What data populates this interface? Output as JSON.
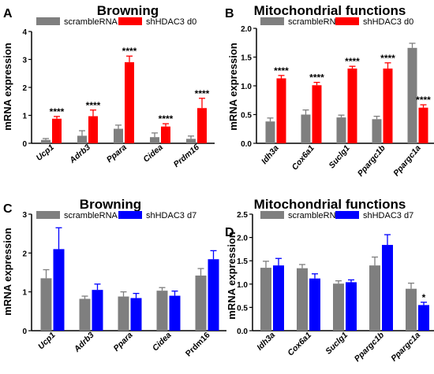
{
  "chart_data": [
    {
      "panel": "A",
      "type": "bar",
      "title": "Browning",
      "ylabel": "mRNA expression",
      "ylim": [
        0,
        4
      ],
      "yticks": [
        "0",
        "1",
        "2",
        "3",
        "4"
      ],
      "categories": [
        "Ucp1",
        "Adrb3",
        "Ppara",
        "Cidea",
        "Prdm16"
      ],
      "category_style": "bold-italic",
      "series": [
        {
          "name": "scrambleRNA",
          "color": "#7f7f7f",
          "values": [
            0.12,
            0.27,
            0.52,
            0.22,
            0.16
          ],
          "errors": [
            0.05,
            0.18,
            0.13,
            0.15,
            0.1
          ]
        },
        {
          "name": "shHDAC3 d0",
          "color": "#ff0000",
          "values": [
            0.88,
            0.97,
            2.9,
            0.6,
            1.26
          ],
          "errors": [
            0.08,
            0.22,
            0.22,
            0.1,
            0.35
          ]
        }
      ],
      "annotations": [
        "****",
        "****",
        "****",
        "****",
        "****"
      ]
    },
    {
      "panel": "B",
      "type": "bar",
      "title": "Mitochondrial functions",
      "ylabel": "mRNA expression",
      "ylim": [
        0,
        2.0
      ],
      "yticks": [
        "0.0",
        "0.5",
        "1.0",
        "1.5",
        "2.0"
      ],
      "categories": [
        "Idh3a",
        "Cox6a1",
        "Suclg1",
        "Ppargc1b",
        "Ppargc1a"
      ],
      "category_style": "bold-italic",
      "series": [
        {
          "name": "scrambleRNA",
          "color": "#7f7f7f",
          "values": [
            0.38,
            0.5,
            0.45,
            0.42,
            1.66
          ],
          "errors": [
            0.06,
            0.08,
            0.04,
            0.05,
            0.08
          ]
        },
        {
          "name": "shHDAC3 d0",
          "color": "#ff0000",
          "values": [
            1.13,
            1.01,
            1.3,
            1.3,
            0.62
          ],
          "errors": [
            0.05,
            0.05,
            0.04,
            0.1,
            0.05
          ]
        }
      ],
      "annotations": [
        "****",
        "****",
        "****",
        "****",
        "****"
      ]
    },
    {
      "panel": "C",
      "type": "bar",
      "title": "Browning",
      "ylabel": "mRNA expression",
      "ylim": [
        0,
        3
      ],
      "yticks": [
        "0",
        "1",
        "2",
        "3"
      ],
      "categories": [
        "Ucp1",
        "Adrb3",
        "Ppara",
        "Cidea",
        "Prdm16"
      ],
      "category_style": "bold-italic-except-last",
      "series": [
        {
          "name": "scrambleRNA",
          "color": "#7f7f7f",
          "values": [
            1.35,
            0.82,
            0.88,
            1.03,
            1.42
          ],
          "errors": [
            0.22,
            0.07,
            0.12,
            0.08,
            0.18
          ]
        },
        {
          "name": "shHDAC3 d7",
          "color": "#0000ff",
          "values": [
            2.1,
            1.05,
            0.84,
            0.9,
            1.84
          ],
          "errors": [
            0.55,
            0.15,
            0.12,
            0.12,
            0.22
          ]
        }
      ],
      "annotations": [
        "",
        "",
        "",
        "",
        ""
      ]
    },
    {
      "panel": "D",
      "type": "bar",
      "title": "Mitochondrial functions",
      "ylabel": "mRNA expression",
      "ylim": [
        0,
        2.5
      ],
      "yticks": [
        "0.0",
        "0.5",
        "1.0",
        "1.5",
        "2.0",
        "2.5"
      ],
      "categories": [
        "Idh3a",
        "Cox6a1",
        "Suclg1",
        "Ppargc1b",
        "Ppargc1a"
      ],
      "category_style": "bold-italic",
      "series": [
        {
          "name": "scrambleRNA",
          "color": "#7f7f7f",
          "values": [
            1.35,
            1.34,
            1.01,
            1.4,
            0.9
          ],
          "errors": [
            0.14,
            0.08,
            0.06,
            0.18,
            0.12
          ]
        },
        {
          "name": "shHDAC3 d7",
          "color": "#0000ff",
          "values": [
            1.4,
            1.12,
            1.04,
            1.84,
            0.55
          ],
          "errors": [
            0.15,
            0.1,
            0.05,
            0.22,
            0.06
          ]
        }
      ],
      "annotations": [
        "",
        "",
        "",
        "",
        "*"
      ]
    }
  ]
}
